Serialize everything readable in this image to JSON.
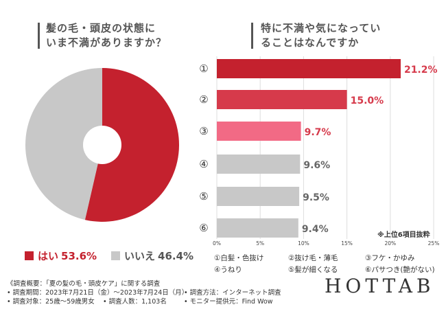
{
  "left_question": {
    "line1": "髪の毛・頭皮の状態に",
    "line2": "いま不満がありますか？"
  },
  "right_question": {
    "line1": "特に不満や気になってい",
    "line2": "ることはなんですか"
  },
  "legend": {
    "yes_label": "はい",
    "yes_value": "53.6%",
    "no_label": "いいえ",
    "no_value": "46.4%"
  },
  "colors": {
    "yes": "#c4212e",
    "no": "#c8c8c8",
    "rank2": "#d63a4b",
    "rank3": "#f26a85",
    "gray_bar": "#c8c8c8"
  },
  "top6_note": "※上位6項目抜粋",
  "options": {
    "o1": "①白髪・色抜け",
    "o2": "②抜け毛・薄毛",
    "o3": "③フケ・かゆみ",
    "o4": "④うねり",
    "o5": "⑤髪が細くなる",
    "o6": "⑥パサつき(艶がない)"
  },
  "survey": {
    "overview": "《調査概要：「夏の髪の毛・頭皮ケア」に関する調査",
    "period": "• 調査期間：2023年7月21日（金）～2023年7月24日（月）",
    "method": "• 調査方法：インターネット調査",
    "target": "• 調査対象：25歳～59歳男女",
    "count": "• 調査人数：1,103名",
    "provider": "• モニター提供元：Find Wow"
  },
  "logo": "HOTTAB",
  "chart_data": [
    {
      "type": "pie",
      "title": "髪の毛・頭皮の状態にいま不満がありますか？",
      "categories": [
        "はい",
        "いいえ"
      ],
      "values": [
        53.6,
        46.4
      ],
      "unit": "%"
    },
    {
      "type": "bar",
      "orientation": "horizontal",
      "title": "特に不満や気になっていることはなんですか",
      "categories": [
        "①",
        "②",
        "③",
        "④",
        "⑤",
        "⑥"
      ],
      "values": [
        21.2,
        15.0,
        9.7,
        9.6,
        9.5,
        9.4
      ],
      "value_labels": [
        "21.2%",
        "15.0%",
        "9.7%",
        "9.6%",
        "9.5%",
        "9.4%"
      ],
      "bar_colors": [
        "#c4212e",
        "#d63a4b",
        "#f26a85",
        "#c8c8c8",
        "#c8c8c8",
        "#c8c8c8"
      ],
      "label_colors": [
        "#d63a4b",
        "#d63a4b",
        "#d63a4b",
        "#666666",
        "#666666",
        "#666666"
      ],
      "xlim": [
        0,
        25
      ],
      "xticks": [
        0,
        5,
        10,
        15,
        20,
        25
      ],
      "xtick_labels": [
        "0%",
        "5%",
        "10%",
        "15%",
        "20%",
        "25%"
      ]
    }
  ]
}
